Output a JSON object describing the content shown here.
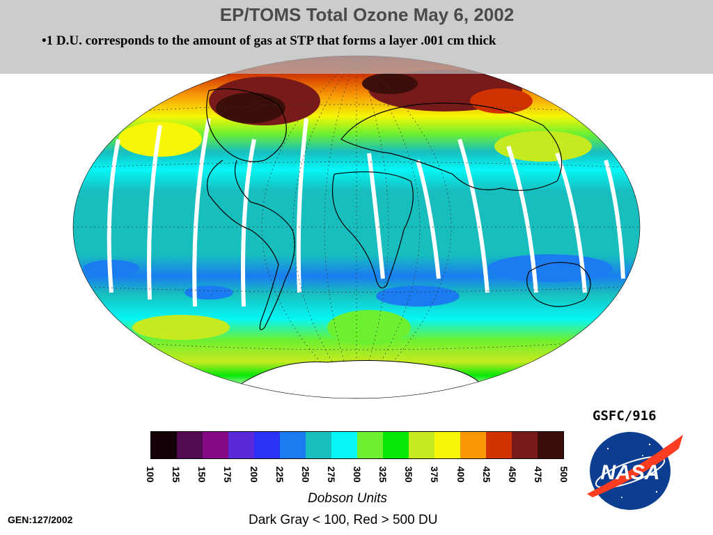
{
  "header": {
    "title": "EP/TOMS Total Ozone May  6, 2002",
    "note": "•1 D.U. corresponds to the amount of gas at STP that forms a layer .001 cm thick"
  },
  "map": {
    "projection": "Hammer-Aitoff",
    "has_graticule": true,
    "has_coastlines": true,
    "has_orbit_gaps": true
  },
  "legend": {
    "ticks": [
      "100",
      "125",
      "150",
      "175",
      "200",
      "225",
      "250",
      "275",
      "300",
      "325",
      "350",
      "375",
      "400",
      "425",
      "450",
      "475",
      "500"
    ],
    "colors": [
      "#140008",
      "#520a50",
      "#860a86",
      "#5a28d6",
      "#2a32f6",
      "#1a7cf0",
      "#18bebe",
      "#06f6f6",
      "#6cf030",
      "#06e806",
      "#c6ea20",
      "#f6f606",
      "#f89806",
      "#d03200",
      "#781a1a",
      "#3c0e0a"
    ],
    "units_label": "Dobson Units",
    "range_note": "Dark Gray < 100, Red > 500 DU"
  },
  "footer": {
    "gen": "GEN:127/2002",
    "credit": "GSFC/916",
    "logo_text": "NASA"
  },
  "colors": {
    "banner": "#bdbdbd",
    "ocean_band": "#18bebe",
    "nasa_blue": "#0b3d91",
    "nasa_red": "#fc3d21"
  }
}
